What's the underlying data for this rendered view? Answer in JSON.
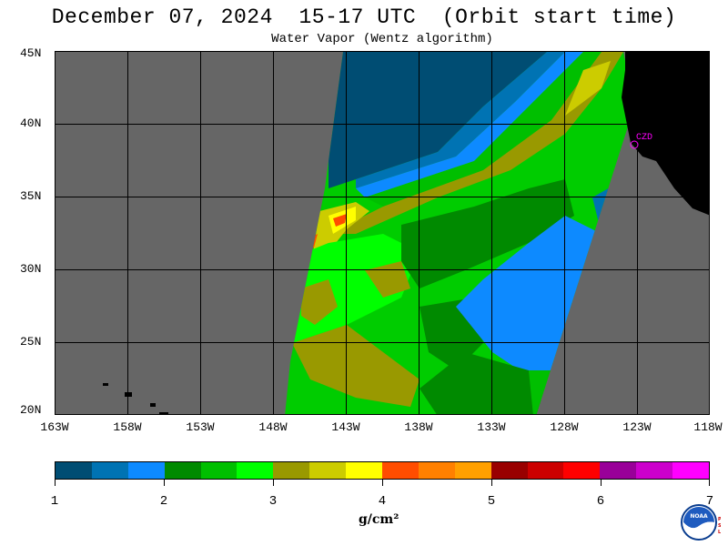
{
  "header": {
    "title": "December 07, 2024  15-17 UTC  (Orbit start time)",
    "subtitle": "Water Vapor (Wentz algorithm)"
  },
  "map": {
    "lat_labels": [
      "45N",
      "40N",
      "35N",
      "30N",
      "25N",
      "20N"
    ],
    "lon_labels": [
      "163W",
      "158W",
      "153W",
      "148W",
      "143W",
      "138W",
      "133W",
      "128W",
      "123W",
      "118W"
    ],
    "station_label": "CZD",
    "colors": {
      "land": "#000000",
      "no_data": "#666666",
      "grid": "#000000",
      "station": "#ff00ff"
    }
  },
  "colorbar": {
    "ticks": [
      "1",
      "2",
      "3",
      "4",
      "5",
      "6",
      "7"
    ],
    "units": "g/cm²",
    "colors": [
      "#004d73",
      "#0073b3",
      "#0d8aff",
      "#008a00",
      "#00bf00",
      "#00ff00",
      "#999900",
      "#cccc00",
      "#ffff00",
      "#ff4d00",
      "#ff8000",
      "#ffa000",
      "#990000",
      "#cc0000",
      "#ff0000",
      "#990099",
      "#cc00cc",
      "#ff00ff"
    ]
  },
  "logo": {
    "text": "NOAA",
    "side_text": "PSL"
  }
}
